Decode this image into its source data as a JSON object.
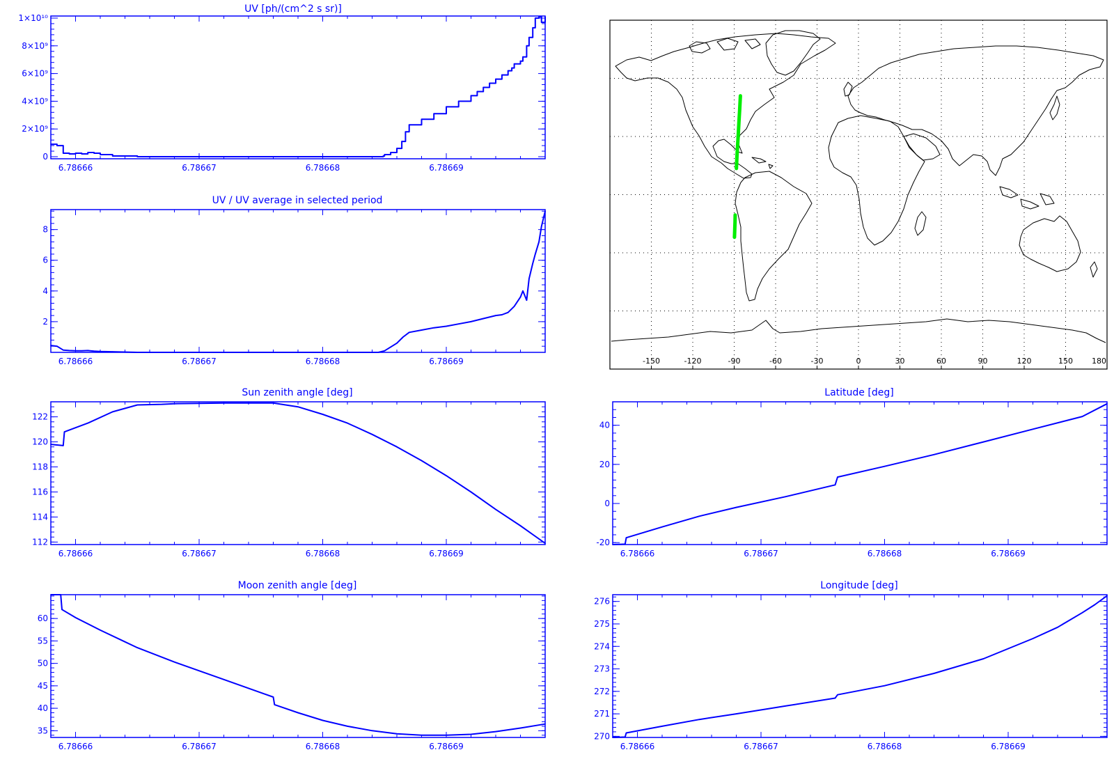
{
  "colors": {
    "plot": "#0000ff",
    "track": "#00ee00",
    "map": "#000000"
  },
  "chart_data": [
    {
      "id": "uv",
      "type": "line",
      "step": true,
      "title": "UV [ph/(cm^2 s sr)]",
      "xlim": [
        6.786658,
        6.786698
      ],
      "ylim": [
        -150000000,
        10150000000
      ],
      "x_ticks": [
        "6.78666",
        "6.78667",
        "6.78668",
        "6.78669"
      ],
      "x_tick_values": [
        6.78666,
        6.78667,
        6.78668,
        6.78669
      ],
      "y_ticks": [
        "0",
        "2×10⁹",
        "4×10⁹",
        "6×10⁹",
        "8×10⁹",
        "1×10¹⁰"
      ],
      "y_tick_values": [
        0,
        2000000000,
        4000000000,
        6000000000,
        8000000000,
        10000000000
      ],
      "x": [
        6.786658,
        6.7866585,
        6.786659,
        6.7866595,
        6.78666,
        6.7866605,
        6.786661,
        6.7866615,
        6.786662,
        6.786663,
        6.786665,
        6.78667,
        6.78668,
        6.786684,
        6.7866845,
        6.7866849,
        6.786685,
        6.7866855,
        6.786686,
        6.7866864,
        6.7866867,
        6.786687,
        6.786688,
        6.786689,
        6.78669,
        6.786691,
        6.786692,
        6.7866925,
        6.786693,
        6.7866935,
        6.786694,
        6.7866945,
        6.786695,
        6.7866953,
        6.7866955,
        6.786696,
        6.7866962,
        6.7866965,
        6.7866967,
        6.786697,
        6.7866972,
        6.7866975,
        6.7866977,
        6.786698
      ],
      "y": [
        900000000,
        800000000,
        250000000,
        200000000,
        250000000,
        200000000,
        300000000,
        250000000,
        150000000,
        50000000,
        0,
        0,
        0,
        0,
        0,
        50000000,
        150000000,
        300000000,
        600000000,
        1100000000,
        1800000000,
        2300000000,
        2700000000,
        3100000000,
        3600000000,
        4000000000,
        4400000000,
        4700000000,
        5000000000,
        5300000000,
        5600000000,
        5900000000,
        6200000000,
        6400000000,
        6700000000,
        6900000000,
        7200000000,
        8000000000,
        8600000000,
        9300000000,
        10000000000,
        10100000000,
        9700000000,
        10100000000
      ]
    },
    {
      "id": "uv-ratio",
      "type": "line",
      "title": "UV / UV average in selected period",
      "xlim": [
        6.786658,
        6.786698
      ],
      "ylim": [
        0,
        9.3
      ],
      "x_ticks": [
        "6.78666",
        "6.78667",
        "6.78668",
        "6.78669"
      ],
      "x_tick_values": [
        6.78666,
        6.78667,
        6.78668,
        6.78669
      ],
      "y_ticks": [
        "2",
        "4",
        "6",
        "8"
      ],
      "y_tick_values": [
        2,
        4,
        6,
        8
      ],
      "x": [
        6.786658,
        6.7866585,
        6.786659,
        6.7866595,
        6.78666,
        6.7866605,
        6.786661,
        6.7866615,
        6.786662,
        6.786663,
        6.786665,
        6.78667,
        6.78668,
        6.786684,
        6.7866845,
        6.786685,
        6.786686,
        6.7866865,
        6.786687,
        6.786688,
        6.786689,
        6.78669,
        6.786691,
        6.786692,
        6.786693,
        6.786694,
        6.7866945,
        6.786695,
        6.7866955,
        6.786696,
        6.7866962,
        6.7866965,
        6.7866967,
        6.786697,
        6.7866972,
        6.7866975,
        6.7866977,
        6.786698
      ],
      "y": [
        0.45,
        0.4,
        0.15,
        0.12,
        0.1,
        0.1,
        0.12,
        0.08,
        0.06,
        0.04,
        0,
        0,
        0,
        0,
        0,
        0.1,
        0.6,
        1.0,
        1.3,
        1.45,
        1.6,
        1.7,
        1.85,
        2.0,
        2.2,
        2.4,
        2.45,
        2.6,
        3.0,
        3.6,
        4.0,
        3.4,
        4.8,
        5.8,
        6.4,
        7.2,
        8.2,
        9.2
      ]
    },
    {
      "id": "sun-zenith",
      "type": "line",
      "title": "Sun zenith angle [deg]",
      "xlim": [
        6.786658,
        6.786698
      ],
      "ylim": [
        111.8,
        123.2
      ],
      "x_ticks": [
        "6.78666",
        "6.78667",
        "6.78668",
        "6.78669"
      ],
      "x_tick_values": [
        6.78666,
        6.78667,
        6.78668,
        6.78669
      ],
      "y_ticks": [
        "112",
        "114",
        "116",
        "118",
        "120",
        "122"
      ],
      "y_tick_values": [
        112,
        114,
        116,
        118,
        120,
        122
      ],
      "x": [
        6.786658,
        6.786659,
        6.7866591,
        6.786661,
        6.786663,
        6.786665,
        6.786667,
        6.786668,
        6.78667,
        6.786672,
        6.786674,
        6.786676,
        6.786678,
        6.78668,
        6.786682,
        6.786684,
        6.786686,
        6.786688,
        6.78669,
        6.786692,
        6.786694,
        6.786696,
        6.786698
      ],
      "y": [
        119.8,
        119.7,
        120.8,
        121.5,
        122.4,
        122.95,
        123.0,
        123.05,
        123.07,
        123.1,
        123.1,
        123.1,
        122.8,
        122.2,
        121.5,
        120.6,
        119.6,
        118.5,
        117.3,
        116.0,
        114.6,
        113.3,
        111.9
      ]
    },
    {
      "id": "moon-zenith",
      "type": "line",
      "title": "Moon zenith angle [deg]",
      "xlim": [
        6.786658,
        6.786698
      ],
      "ylim": [
        33.5,
        65.3
      ],
      "x_ticks": [
        "6.78666",
        "6.78667",
        "6.78668",
        "6.78669"
      ],
      "x_tick_values": [
        6.78666,
        6.78667,
        6.78668,
        6.78669
      ],
      "y_ticks": [
        "35",
        "40",
        "45",
        "50",
        "55",
        "60"
      ],
      "y_tick_values": [
        35,
        40,
        45,
        50,
        55,
        60
      ],
      "x": [
        6.786658,
        6.7866588,
        6.7866589,
        6.78666,
        6.786662,
        6.786664,
        6.786665,
        6.786668,
        6.786672,
        6.786676,
        6.7866761,
        6.786678,
        6.78668,
        6.786682,
        6.786684,
        6.786686,
        6.786688,
        6.78669,
        6.786692,
        6.786694,
        6.786696,
        6.786698
      ],
      "y": [
        65.3,
        65.3,
        62.0,
        60.2,
        57.4,
        54.8,
        53.5,
        50.3,
        46.4,
        42.5,
        40.8,
        39.0,
        37.3,
        36.0,
        35.0,
        34.3,
        34.0,
        34.0,
        34.2,
        34.8,
        35.6,
        36.5
      ]
    },
    {
      "id": "latitude",
      "type": "line",
      "title": "Latitude [deg]",
      "xlim": [
        6.786658,
        6.786698
      ],
      "ylim": [
        -21,
        52
      ],
      "x_ticks": [
        "6.78666",
        "6.78667",
        "6.78668",
        "6.78669"
      ],
      "x_tick_values": [
        6.78666,
        6.78667,
        6.78668,
        6.78669
      ],
      "y_ticks": [
        "-20",
        "0",
        "20",
        "40"
      ],
      "y_tick_values": [
        -20,
        0,
        20,
        40
      ],
      "x": [
        6.786658,
        6.786659,
        6.7866591,
        6.786662,
        6.786665,
        6.786668,
        6.786672,
        6.786676,
        6.7866762,
        6.78668,
        6.786684,
        6.786688,
        6.786692,
        6.786696,
        6.786698
      ],
      "y": [
        -21,
        -20.8,
        -17.5,
        -12.0,
        -6.5,
        -2.0,
        3.5,
        9.5,
        13.5,
        19.0,
        25.0,
        31.5,
        38.0,
        44.5,
        51.0
      ]
    },
    {
      "id": "longitude",
      "type": "line",
      "title": "Longitude [deg]",
      "xlim": [
        6.786658,
        6.786698
      ],
      "ylim": [
        269.95,
        276.3
      ],
      "x_ticks": [
        "6.78666",
        "6.78667",
        "6.78668",
        "6.78669"
      ],
      "x_tick_values": [
        6.78666,
        6.78667,
        6.78668,
        6.78669
      ],
      "y_ticks": [
        "270",
        "271",
        "272",
        "273",
        "274",
        "275",
        "276"
      ],
      "y_tick_values": [
        270,
        271,
        272,
        273,
        274,
        275,
        276
      ],
      "x": [
        6.786658,
        6.786659,
        6.7866591,
        6.786662,
        6.786665,
        6.786668,
        6.786672,
        6.786676,
        6.7866762,
        6.78668,
        6.786684,
        6.786688,
        6.78669,
        6.786692,
        6.786694,
        6.786696,
        6.786697,
        6.786698
      ],
      "y": [
        269.95,
        269.97,
        270.15,
        270.45,
        270.75,
        271.0,
        271.35,
        271.7,
        271.85,
        272.25,
        272.8,
        273.45,
        273.9,
        274.35,
        274.85,
        275.5,
        275.85,
        276.25
      ]
    },
    {
      "id": "ground-track-map",
      "type": "map",
      "projection": "equirectangular",
      "xlim": [
        -180,
        180
      ],
      "ylim": [
        -90,
        90
      ],
      "x_ticks": [
        "-150",
        "-120",
        "-90",
        "-60",
        "-30",
        "0",
        "30",
        "60",
        "90",
        "120",
        "150",
        "180"
      ],
      "x_tick_values": [
        -150,
        -120,
        -90,
        -60,
        -30,
        0,
        30,
        60,
        90,
        120,
        150,
        180
      ],
      "grid": true,
      "track": [
        {
          "lon": [
            -89.8,
            -89.6,
            -89.4,
            -89.3
          ],
          "lat": [
            -22,
            -18,
            -14,
            -10.5
          ]
        },
        {
          "lon": [
            -88.4,
            -88.0,
            -87.5,
            -87.0,
            -86.5,
            -86.0,
            -85.5
          ],
          "lat": [
            13.5,
            20,
            26,
            32,
            38,
            44,
            51
          ]
        }
      ]
    }
  ]
}
